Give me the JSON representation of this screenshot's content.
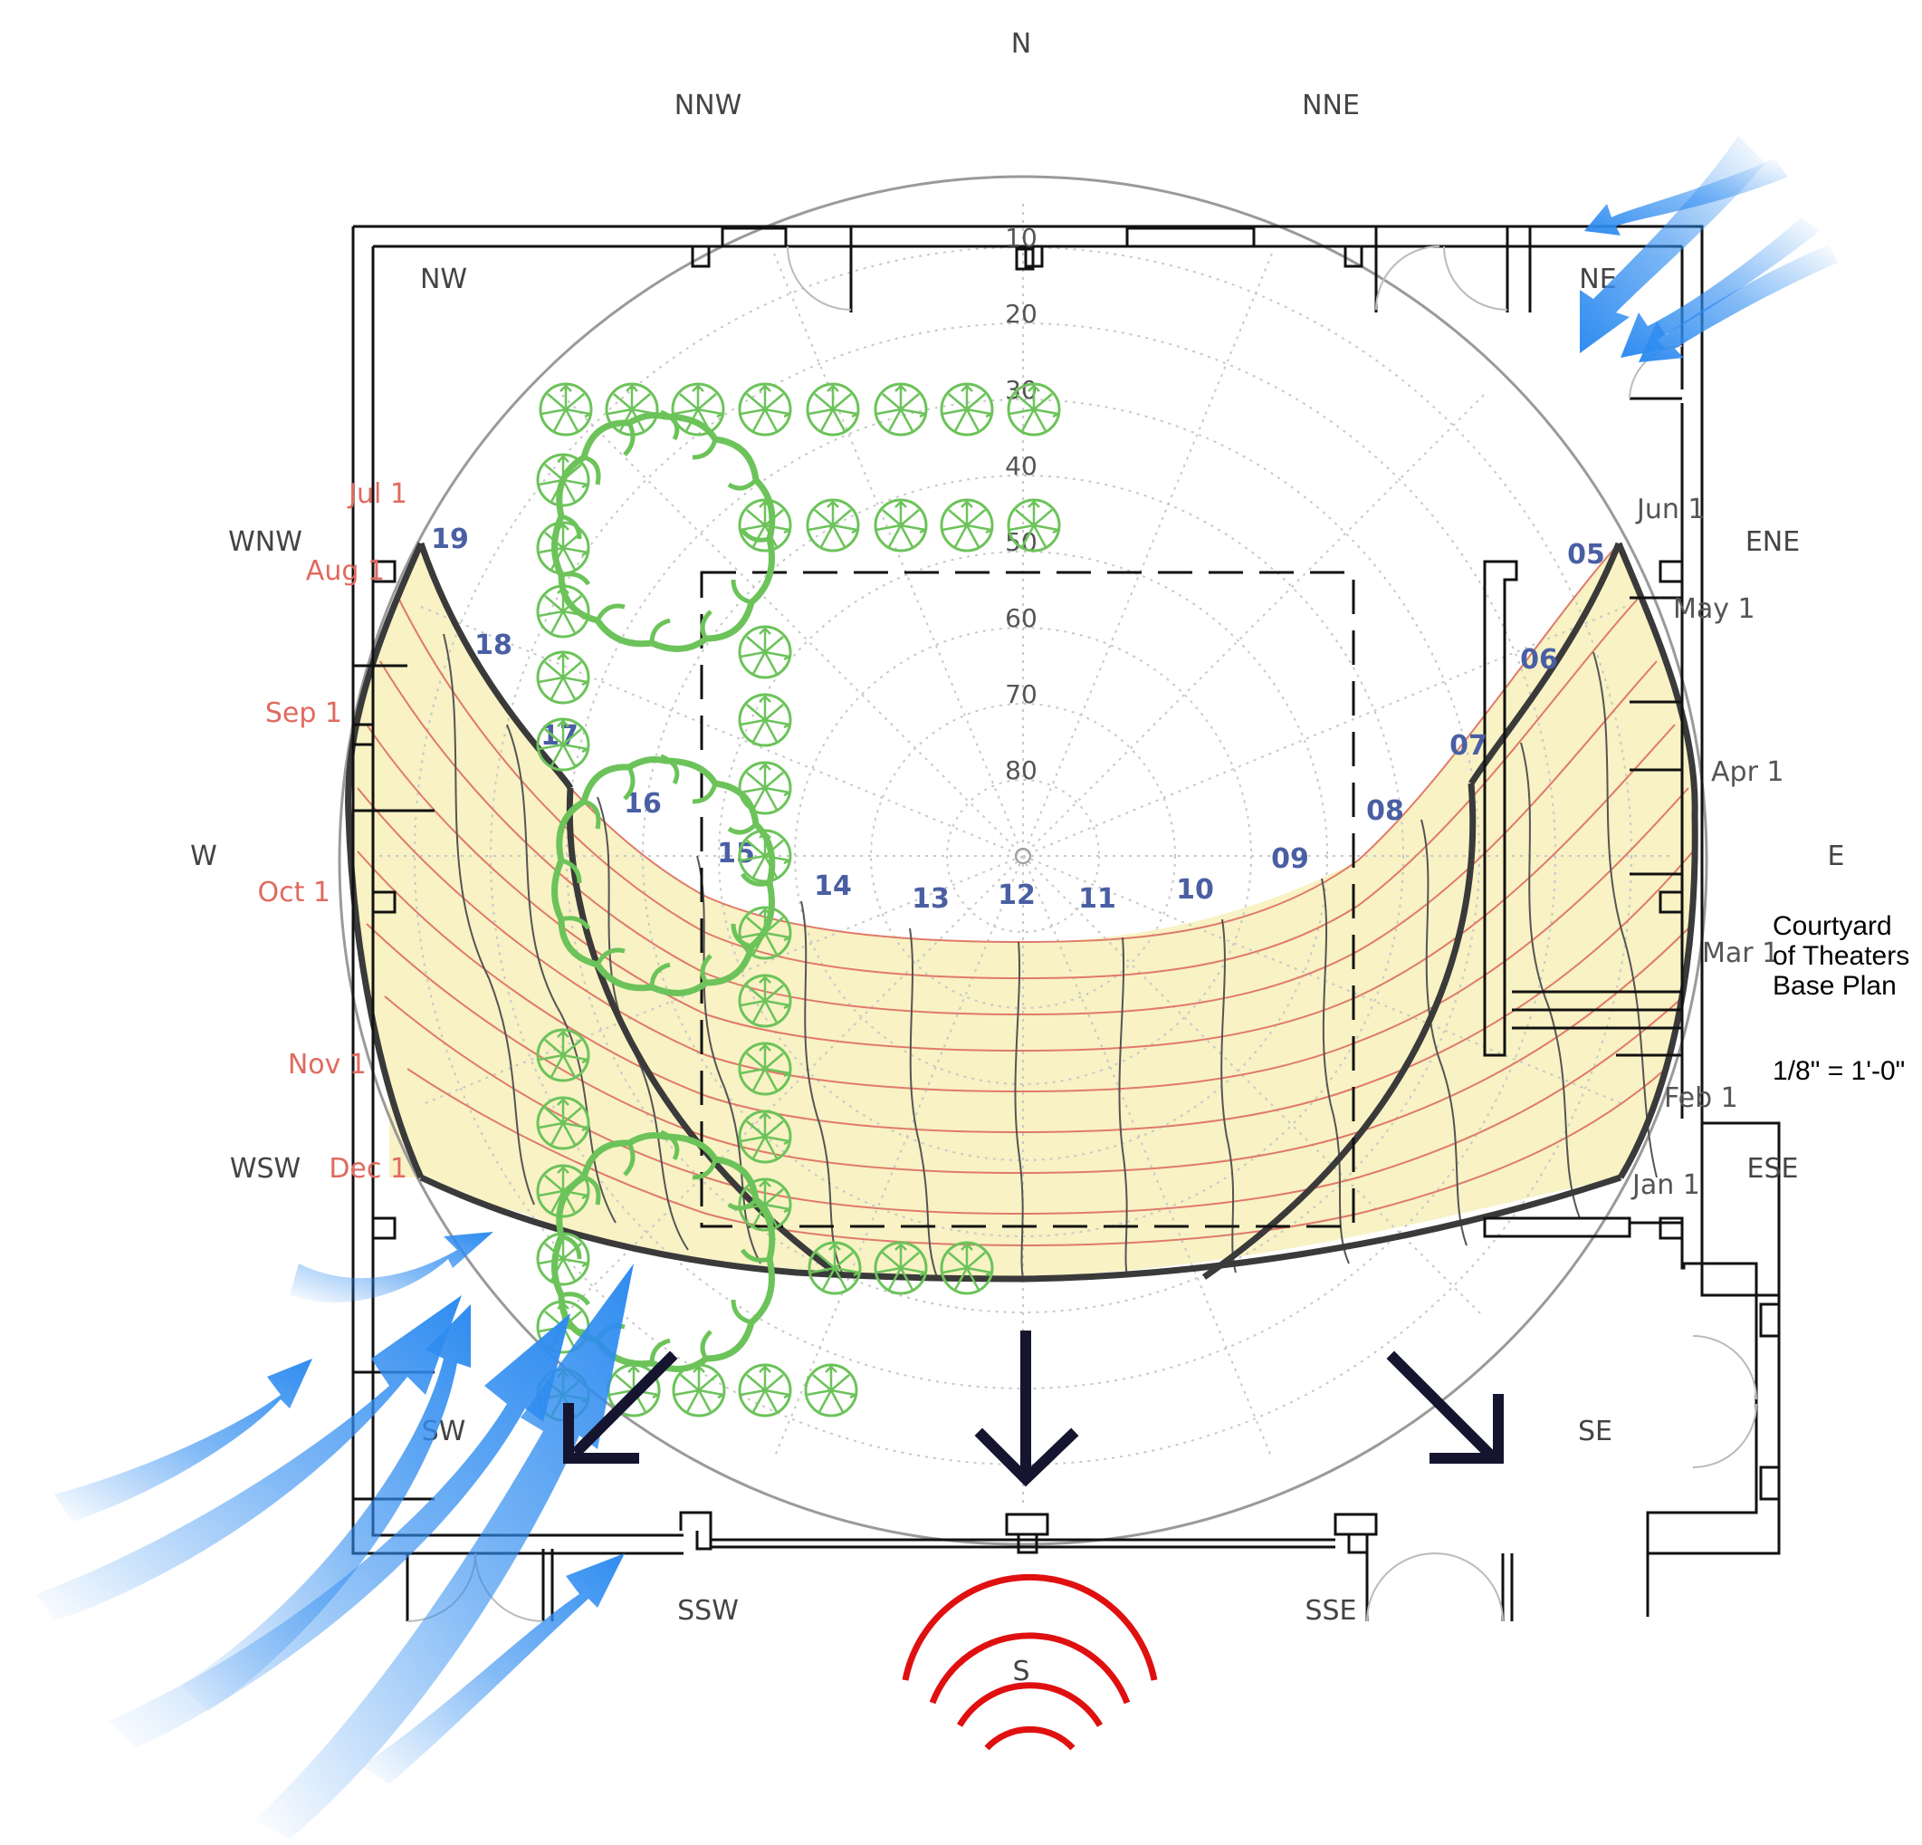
{
  "compass": {
    "n": "N",
    "nnw": "NNW",
    "nne": "NNE",
    "nw": "NW",
    "ne": "NE",
    "wnw": "WNW",
    "ene": "ENE",
    "w": "W",
    "e": "E",
    "wsw": "WSW",
    "ese": "ESE",
    "sw": "SW",
    "se": "SE",
    "ssw": "SSW",
    "sse": "SSE",
    "s": "S"
  },
  "altitudes": [
    "10",
    "20",
    "30",
    "40",
    "50",
    "60",
    "70",
    "80"
  ],
  "hours": [
    "19",
    "18",
    "17",
    "16",
    "15",
    "14",
    "13",
    "12",
    "11",
    "10",
    "09",
    "08",
    "07",
    "06",
    "05"
  ],
  "months_left": [
    "Jul 1",
    "Aug 1",
    "Sep 1",
    "Oct 1",
    "Nov 1",
    "Dec 1"
  ],
  "months_right": [
    "Jun 1",
    "May 1",
    "Apr 1",
    "Mar 1",
    "Feb 1",
    "Jan 1"
  ],
  "plan": {
    "title_line1": "Courtyard",
    "title_line2": "of Theaters",
    "title_line3": "Base Plan",
    "scale": "1/8\" = 1'-0\""
  },
  "colors": {
    "sun_path_fill": "#f8f2c4",
    "day_lines": "#e07a6a",
    "hour_lines": "#4a4a4a",
    "trees": "#6cc35a",
    "wind": "#2f8cf0",
    "sound": "#e01010",
    "arrows": "#151530"
  }
}
